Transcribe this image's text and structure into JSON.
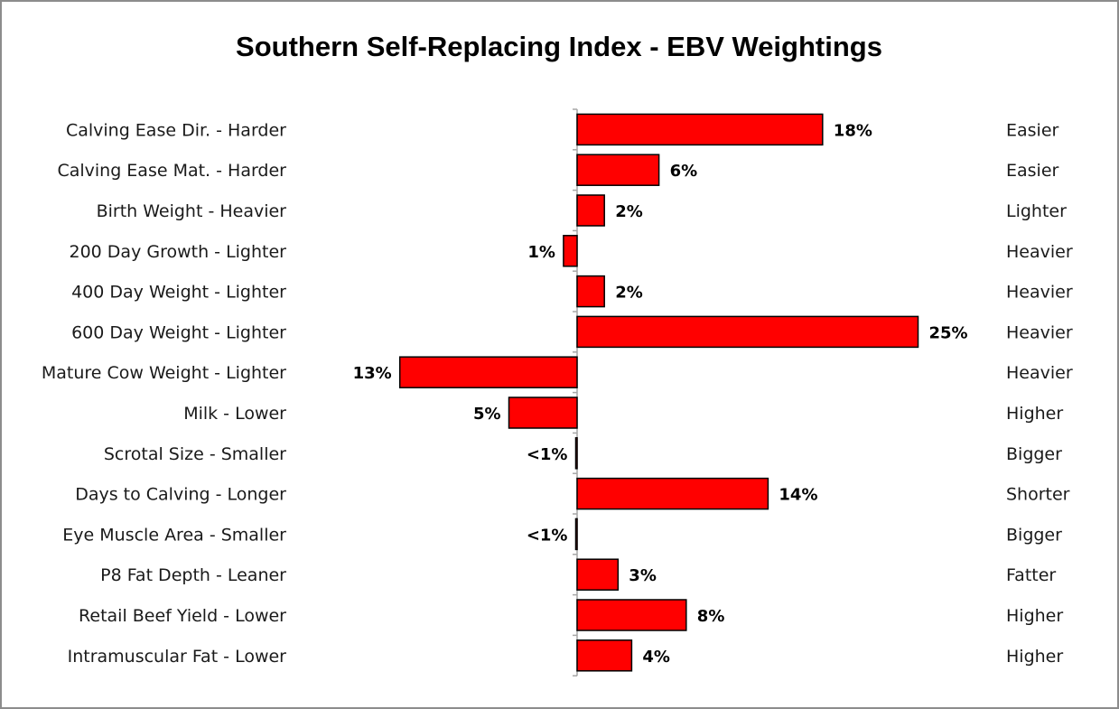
{
  "chart_data": {
    "type": "bar",
    "orientation": "horizontal-diverging",
    "title": "Southern Self-Replacing Index - EBV Weightings",
    "categories": [
      "Calving Ease Dir.",
      "Calving Ease Mat.",
      "Birth Weight",
      "200 Day Growth",
      "400 Day Weight",
      "600 Day Weight",
      "Mature Cow Weight",
      "Milk",
      "Scrotal Size",
      "Days to Calving",
      "Eye Muscle Area",
      "P8 Fat Depth",
      "Retail Beef Yield",
      "Intramuscular Fat"
    ],
    "left_labels": [
      "Calving Ease Dir. - Harder",
      "Calving Ease Mat. - Harder",
      "Birth Weight - Heavier",
      "200 Day Growth - Lighter",
      "400 Day Weight - Lighter",
      "600 Day Weight - Lighter",
      "Mature Cow Weight - Lighter",
      "Milk - Lower",
      "Scrotal Size - Smaller",
      "Days to Calving - Longer",
      "Eye Muscle Area - Smaller",
      "P8 Fat Depth - Leaner",
      "Retail Beef Yield - Lower",
      "Intramuscular Fat - Lower"
    ],
    "right_labels": [
      "Easier",
      "Easier",
      "Lighter",
      "Heavier",
      "Heavier",
      "Heavier",
      "Heavier",
      "Higher",
      "Bigger",
      "Shorter",
      "Bigger",
      "Fatter",
      "Higher",
      "Higher"
    ],
    "values": [
      18,
      6,
      2,
      -1,
      2,
      25,
      -13,
      -5,
      -0.1,
      14,
      -0.1,
      3,
      8,
      4
    ],
    "data_labels": [
      "18%",
      "6%",
      "2%",
      "1%",
      "2%",
      "25%",
      "13%",
      "5%",
      "<1%",
      "14%",
      "<1%",
      "3%",
      "8%",
      "4%"
    ],
    "xlim": [
      -15,
      26
    ],
    "xlabel": "",
    "ylabel": "",
    "grid": false,
    "legend": "none",
    "colors": {
      "bar_fill": "#ff0000",
      "bar_stroke": "#000000",
      "axis": "#a6a6a6"
    }
  }
}
